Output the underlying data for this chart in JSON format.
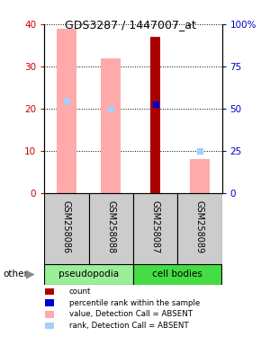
{
  "title": "GDS3287 / 1447007_at",
  "samples": [
    "GSM258086",
    "GSM258088",
    "GSM258087",
    "GSM258089"
  ],
  "groups": [
    "pseudopodia",
    "pseudopodia",
    "cell bodies",
    "cell bodies"
  ],
  "group_colors": {
    "pseudopodia": "#99ee99",
    "cell bodies": "#44dd44"
  },
  "ylim_left": [
    0,
    40
  ],
  "ylim_right": [
    0,
    100
  ],
  "left_ticks": [
    0,
    10,
    20,
    30,
    40
  ],
  "right_ticks": [
    0,
    25,
    50,
    75,
    100
  ],
  "right_tick_labels": [
    "0",
    "25",
    "50",
    "75",
    "100%"
  ],
  "count_values": [
    null,
    null,
    37,
    null
  ],
  "count_color": "#aa0000",
  "percentile_values": [
    null,
    null,
    21,
    null
  ],
  "percentile_color": "#0000cc",
  "value_absent_values": [
    39,
    32,
    null,
    8
  ],
  "value_absent_color": "#ffaaaa",
  "rank_absent_values": [
    22,
    20,
    null,
    10
  ],
  "rank_absent_color": "#aaccff",
  "label_color_left": "#cc0000",
  "label_color_right": "#0000cc",
  "sample_box_color": "#cccccc",
  "legend_items": [
    {
      "color": "#aa0000",
      "label": "count"
    },
    {
      "color": "#0000cc",
      "label": "percentile rank within the sample"
    },
    {
      "color": "#ffaaaa",
      "label": "value, Detection Call = ABSENT"
    },
    {
      "color": "#aaccff",
      "label": "rank, Detection Call = ABSENT"
    }
  ]
}
